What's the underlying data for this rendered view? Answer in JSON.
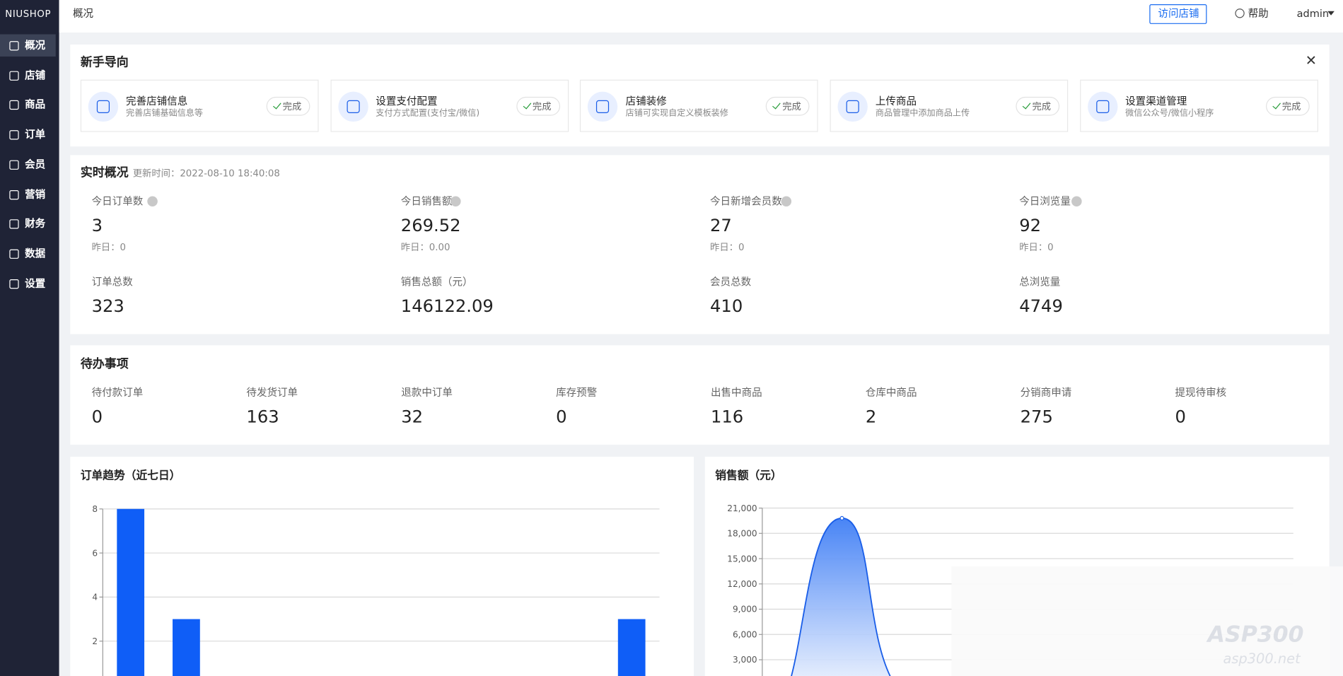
{
  "sidebar": {
    "logo": "NIUSHOP",
    "menu": [
      "概况",
      "店铺",
      "商品",
      "订单",
      "会员",
      "营销",
      "财务",
      "数据",
      "设置"
    ]
  },
  "header": {
    "breadcrumb": "概况",
    "visit_store": "访问店铺",
    "help": "帮助",
    "user": "admin"
  },
  "guide": {
    "title": "新手导向",
    "steps": [
      {
        "title": "完善店铺信息",
        "desc": "完善店铺基础信息等",
        "status": "完成"
      },
      {
        "title": "设置支付配置",
        "desc": "支付方式配置(支付宝/微信)",
        "status": "完成"
      },
      {
        "title": "店铺装修",
        "desc": "店铺可实现自定义模板装修",
        "status": "完成"
      },
      {
        "title": "上传商品",
        "desc": "商品管理中添加商品上传",
        "status": "完成"
      },
      {
        "title": "设置渠道管理",
        "desc": "微信公众号/微信小程序",
        "status": "完成"
      }
    ]
  },
  "realtime": {
    "title": "实时概况",
    "updated": "更新时间：2022-08-10 18:40:08",
    "today": [
      {
        "label": "今日订单数",
        "value": 3,
        "yesterday": "昨日：0"
      },
      {
        "label": "今日销售额",
        "value": 269.52,
        "yesterday": "昨日：0.00"
      },
      {
        "label": "今日新增会员数",
        "value": 27,
        "yesterday": "昨日：0"
      },
      {
        "label": "今日浏览量",
        "value": 92,
        "yesterday": "昨日：0"
      }
    ],
    "totals": [
      {
        "label": "订单总数",
        "value": 323
      },
      {
        "label": "销售总额（元）",
        "value": 146122.09
      },
      {
        "label": "会员总数",
        "value": 410
      },
      {
        "label": "总浏览量",
        "value": 4749
      }
    ]
  },
  "todo": {
    "title": "待办事项",
    "items": [
      {
        "label": "待付款订单",
        "value": 0
      },
      {
        "label": "待发货订单",
        "value": 163
      },
      {
        "label": "退款中订单",
        "value": 32
      },
      {
        "label": "库存预警",
        "value": 0
      },
      {
        "label": "出售中商品",
        "value": 116
      },
      {
        "label": "仓库中商品",
        "value": 2
      },
      {
        "label": "分销商申请",
        "value": 275
      },
      {
        "label": "提现待审核",
        "value": 0
      }
    ]
  },
  "charts": [
    {
      "type": "bar",
      "title": "订单趋势（近七日）",
      "categories": [
        null,
        null,
        null,
        null,
        null,
        null,
        null,
        null,
        null,
        null
      ],
      "values": [
        8,
        3,
        0,
        0,
        0,
        0,
        0,
        0,
        0,
        3
      ],
      "color": "#0f5ef7",
      "ylim": [
        0,
        8
      ],
      "yticks": [
        2,
        4,
        6,
        8
      ],
      "grid": true
    },
    {
      "type": "area",
      "title": "销售额（元）",
      "categories": [
        null,
        null,
        null,
        null,
        null,
        null,
        null,
        null,
        null,
        null
      ],
      "values": [
        0,
        19800,
        0,
        0,
        0,
        0,
        0,
        0,
        0,
        0
      ],
      "color": "#1a5ee8",
      "ylim": [
        0,
        21000
      ],
      "yticks": [
        {
          "value": 3000,
          "label": "3,000"
        },
        {
          "value": 6000,
          "label": "6,000"
        },
        {
          "value": 9000,
          "label": "9,000"
        },
        {
          "value": 12000,
          "label": "12,000"
        },
        {
          "value": 15000,
          "label": "15,000"
        },
        {
          "value": 18000,
          "label": "18,000"
        },
        {
          "value": 21000,
          "label": "21,000"
        }
      ],
      "grid": true
    }
  ],
  "watermark": [
    "ASP300",
    "asp300.net"
  ]
}
